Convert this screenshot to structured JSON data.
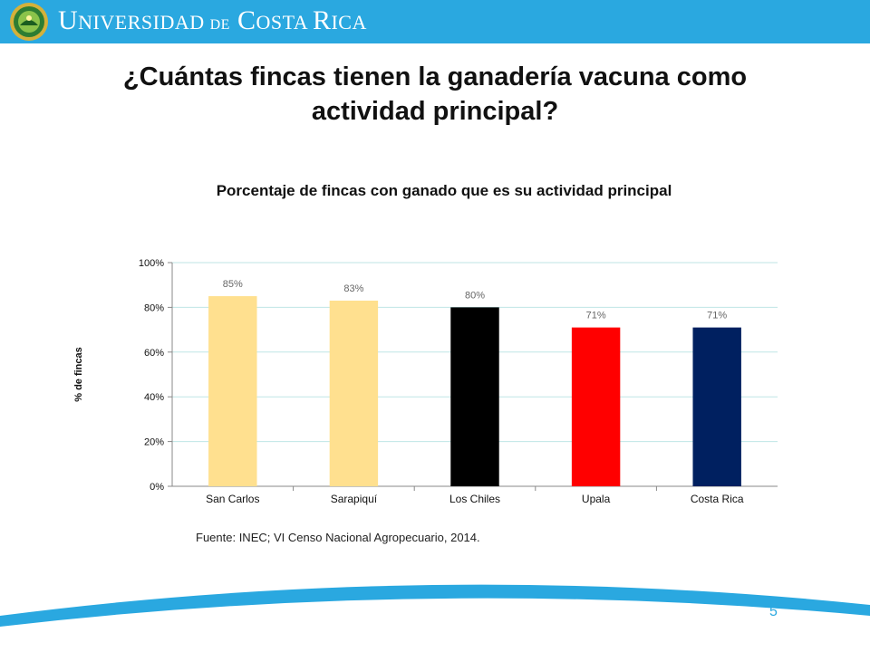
{
  "header": {
    "university_name_parts": [
      "U",
      "NIVERSIDAD ",
      "DE",
      " C",
      "OSTA ",
      "R",
      "ICA"
    ],
    "bar_color": "#2aa8e0"
  },
  "slide": {
    "title": "¿Cuántas fincas tienen la ganadería vacuna como actividad principal?",
    "page_number": "5"
  },
  "chart_data": {
    "type": "bar",
    "title": "Porcentaje de fincas con ganado que es su actividad principal",
    "xlabel": "",
    "ylabel": "% de fincas",
    "categories": [
      "San Carlos",
      "Sarapiquí",
      "Los Chiles",
      "Upala",
      "Costa Rica"
    ],
    "values": [
      85,
      83,
      80,
      71,
      71
    ],
    "data_labels": [
      "85%",
      "83%",
      "80%",
      "71%",
      "71%"
    ],
    "colors": [
      "#ffe08f",
      "#ffe08f",
      "#000000",
      "#ff0000",
      "#002060"
    ],
    "ylim": [
      0,
      100
    ],
    "yticks": [
      0,
      20,
      40,
      60,
      80,
      100
    ],
    "ytick_labels": [
      "0%",
      "20%",
      "40%",
      "60%",
      "80%",
      "100%"
    ],
    "grid": true,
    "grid_color": "#bfe6e6",
    "legend": "none"
  },
  "source": "Fuente: INEC; VI Censo Nacional Agropecuario, 2014."
}
